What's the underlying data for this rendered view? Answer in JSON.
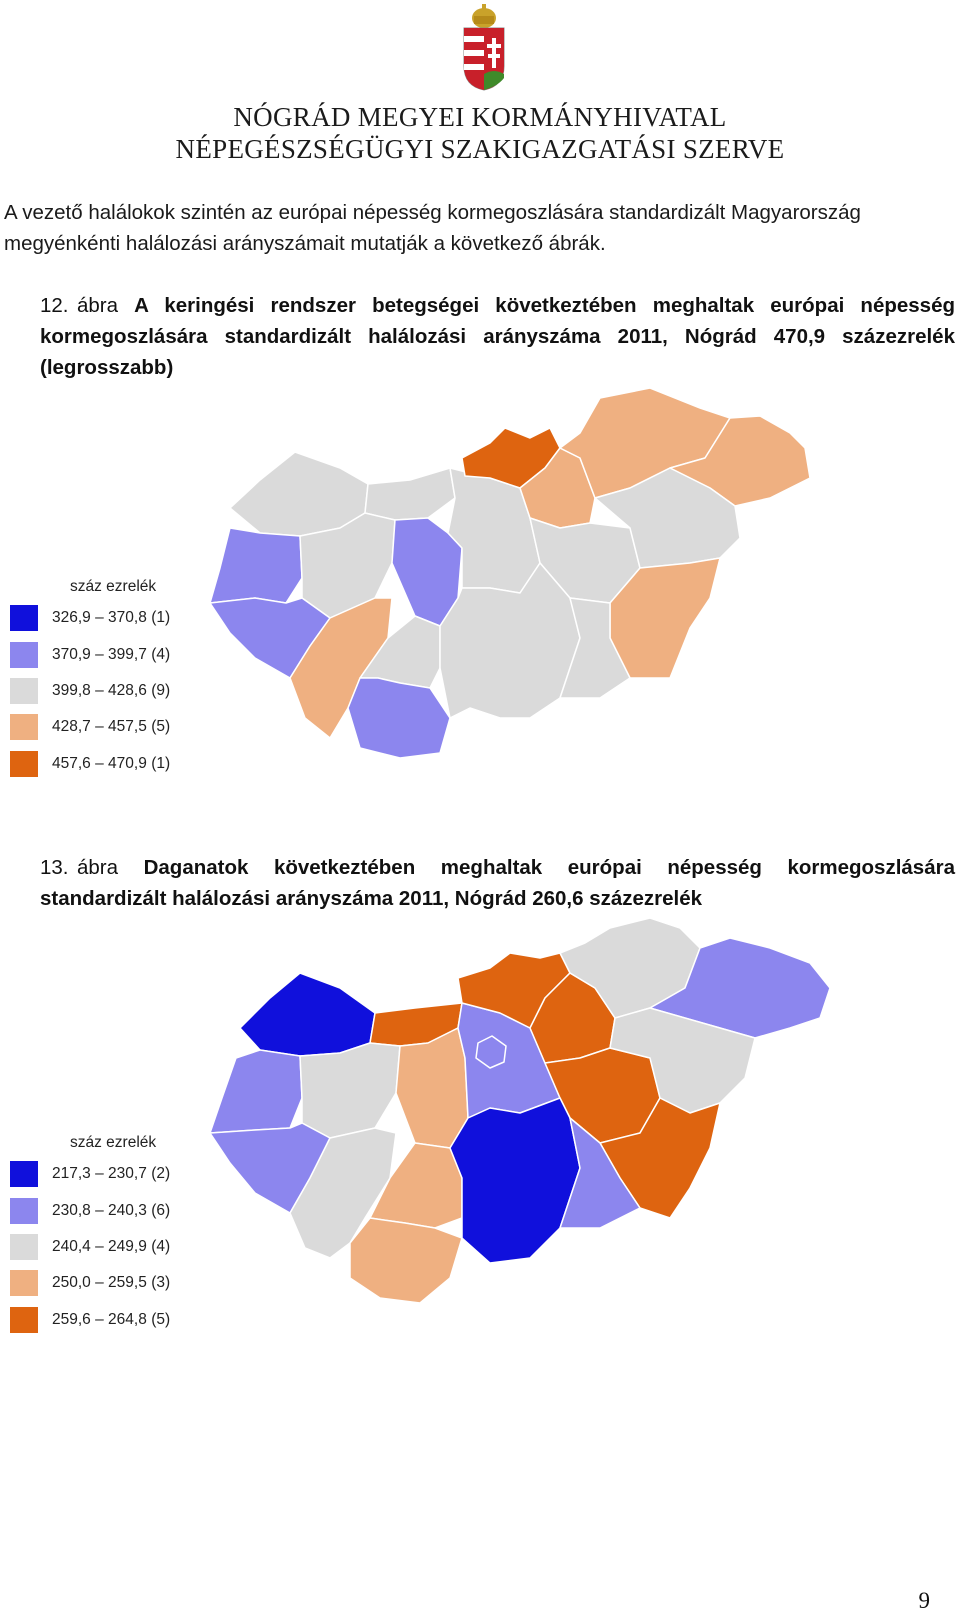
{
  "header": {
    "line1": "NÓGRÁD MEGYEI KORMÁNYHIVATAL",
    "line2": "NÉPEGÉSZSÉGÜGYI SZAKIGAZGATÁSI SZERVE"
  },
  "intro": "A vezető halálokok szintén az európai népesség kormegoszlására standardizált Magyarország megyénkénti halálozási arányszámait mutatják a következő ábrák.",
  "figures": [
    {
      "number": "12.",
      "label": "ábra",
      "title": "A keringési rendszer betegségei következtében meghaltak európai népesség kormegoszlására standardizált halálozási arányszáma 2011, Nógrád 470,9 százezrelék (legrosszabb)",
      "legend_title": "száz ezrelék",
      "legend": [
        {
          "range": "326,9 – 370,8",
          "count": "(1)",
          "color": "#1010dc"
        },
        {
          "range": "370,9 – 399,7",
          "count": "(4)",
          "color": "#8c86ee"
        },
        {
          "range": "399,8 – 428,6",
          "count": "(9)",
          "color": "#dadada"
        },
        {
          "range": "428,7 – 457,5",
          "count": "(5)",
          "color": "#efb081"
        },
        {
          "range": "457,6 – 470,9",
          "count": "(1)",
          "color": "#de6410"
        }
      ]
    },
    {
      "number": "13.",
      "label": "ábra",
      "title": "Daganatok következtében meghaltak európai népesség kormegoszlására standardizált halálozási arányszáma 2011, Nógrád 260,6 százezrelék",
      "legend_title": "száz ezrelék",
      "legend": [
        {
          "range": "217,3 – 230,7",
          "count": "(2)",
          "color": "#1010dc"
        },
        {
          "range": "230,8 – 240,3",
          "count": "(6)",
          "color": "#8c86ee"
        },
        {
          "range": "240,4 – 249,9",
          "count": "(4)",
          "color": "#dadada"
        },
        {
          "range": "250,0 – 259,5",
          "count": "(3)",
          "color": "#efb081"
        },
        {
          "range": "259,6 – 264,8",
          "count": "(5)",
          "color": "#de6410"
        }
      ]
    }
  ],
  "page_number": "9"
}
